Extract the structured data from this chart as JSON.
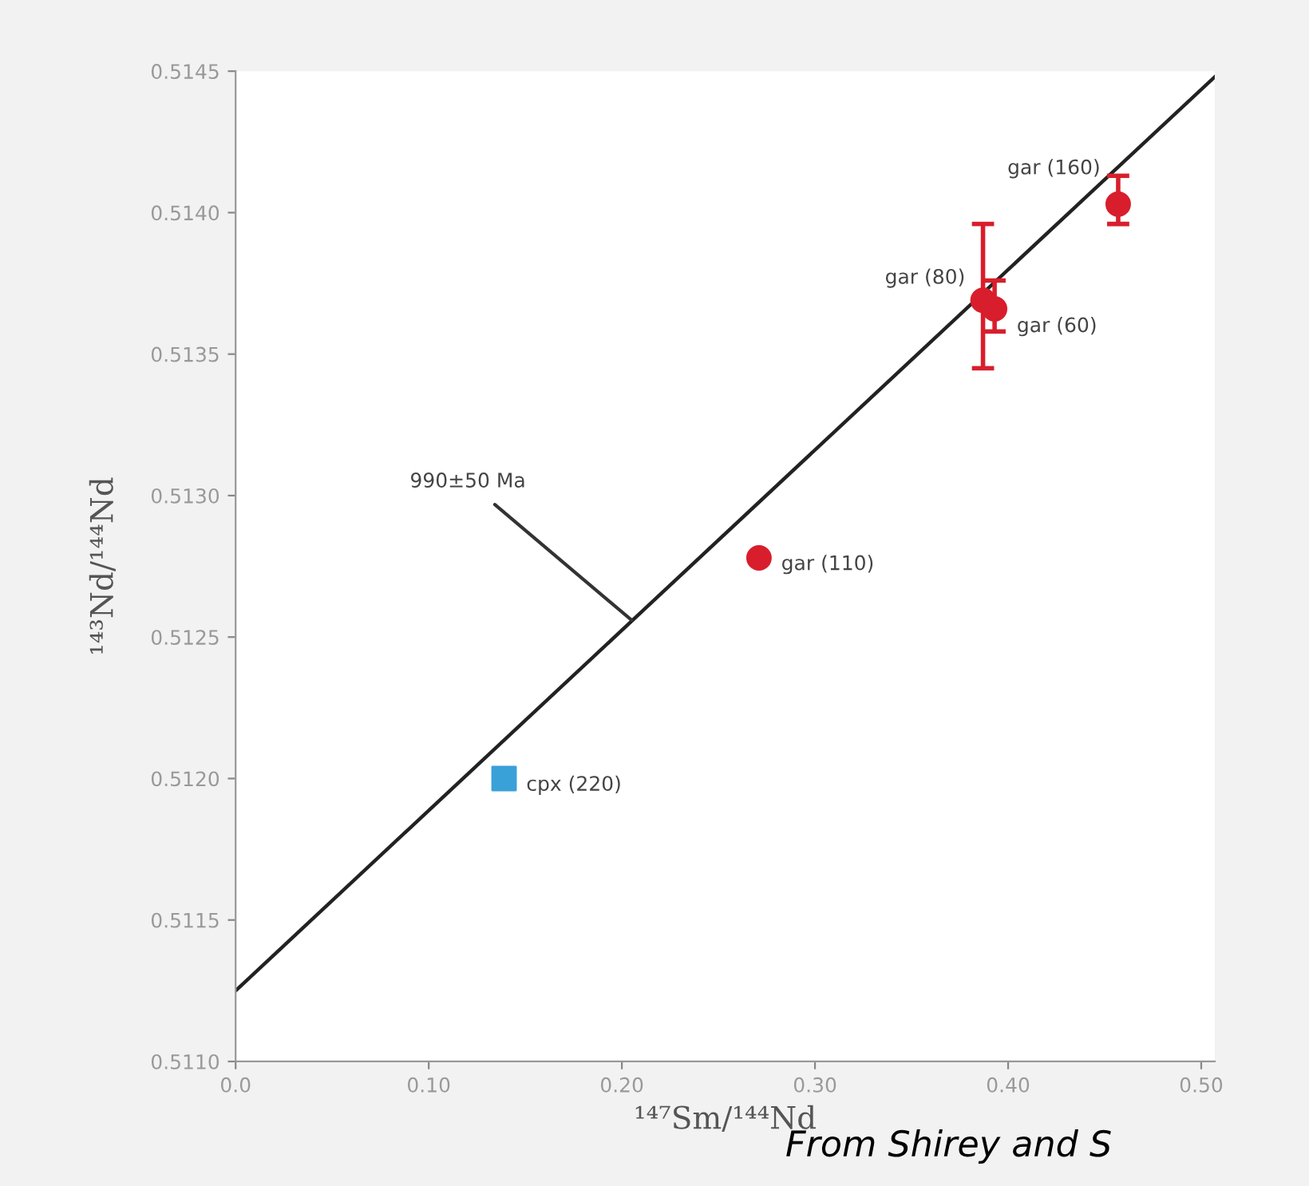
{
  "chart_data": {
    "type": "scatter",
    "xlabel": "¹⁴⁷Sm/¹⁴⁴Nd",
    "ylabel": "¹⁴³Nd/¹⁴⁴Nd",
    "xlim": [
      0,
      0.507
    ],
    "ylim": [
      0.511,
      0.5145
    ],
    "xticks": [
      {
        "value": 0,
        "label": "0.0"
      },
      {
        "value": 0.1,
        "label": "0.10"
      },
      {
        "value": 0.2,
        "label": "0.20"
      },
      {
        "value": 0.3,
        "label": "0.30"
      },
      {
        "value": 0.4,
        "label": "0.40"
      },
      {
        "value": 0.5,
        "label": "0.50"
      }
    ],
    "yticks": [
      {
        "value": 0.511,
        "label": "0.5110"
      },
      {
        "value": 0.5115,
        "label": "0.5115"
      },
      {
        "value": 0.512,
        "label": "0.5120"
      },
      {
        "value": 0.5125,
        "label": "0.5125"
      },
      {
        "value": 0.513,
        "label": "0.5130"
      },
      {
        "value": 0.5135,
        "label": "0.5135"
      },
      {
        "value": 0.514,
        "label": "0.5140"
      },
      {
        "value": 0.5145,
        "label": "0.5145"
      }
    ],
    "grid": false,
    "series": [
      {
        "type": "line",
        "color": "#222222",
        "marker": "none",
        "line_style": "solid",
        "x": [
          0,
          0.507
        ],
        "values": [
          0.51125,
          0.51448
        ]
      },
      {
        "color": "#d81e2c",
        "marker": "circle",
        "x": [
          0.271,
          0.387,
          0.393,
          0.457
        ],
        "values": [
          0.51278,
          0.51369,
          0.51366,
          0.51403
        ],
        "errors": [
          null,
          [
            0.51345,
            0.51396
          ],
          [
            0.51358,
            0.51376
          ],
          [
            0.51396,
            0.51413
          ]
        ]
      },
      {
        "color": "#3aa0d8",
        "marker": "square",
        "x": [
          0.139
        ],
        "values": [
          0.512
        ]
      }
    ],
    "annotations": [
      {
        "text": "990±50 Ma",
        "x": 0.205,
        "y": 0.51256
      },
      {
        "text": "gar (160)",
        "x": 0.457,
        "y": 0.51403
      },
      {
        "text": "gar (80)",
        "x": 0.387,
        "y": 0.51369
      },
      {
        "text": "gar (60)",
        "x": 0.393,
        "y": 0.51366
      },
      {
        "text": "gar (110)",
        "x": 0.271,
        "y": 0.51278
      },
      {
        "text": "cpx (220)",
        "x": 0.139,
        "y": 0.512
      },
      "From Shirey and S"
    ]
  }
}
